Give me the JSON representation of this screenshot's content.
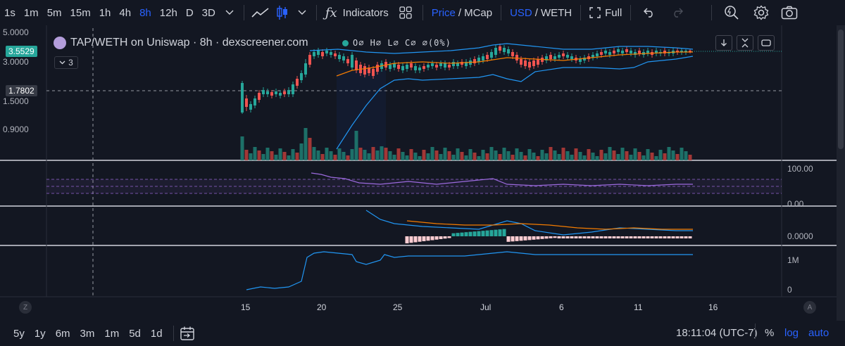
{
  "toolbar": {
    "intervals": [
      "1s",
      "1m",
      "5m",
      "15m",
      "1h",
      "4h",
      "8h",
      "12h",
      "D",
      "3D"
    ],
    "active_interval": "8h",
    "indicators_label": "Indicators",
    "price_label": "Price",
    "mcap_label": "MCap",
    "usd_label": "USD",
    "weth_label": "WETH",
    "slash": "/",
    "full_label": "Full"
  },
  "legend": {
    "title": "TAP/WETH on Uniswap · 8h · dexscreener.com",
    "ohlc": "O∅ H∅ L∅ C∅ ∅(0%)",
    "collapse_count": "3"
  },
  "price_axis": {
    "labels": [
      "5.0000",
      "3.0000",
      "1.5000",
      "0.9000"
    ],
    "current_price": "3.5529",
    "crosshair_price": "1.7802"
  },
  "rsi_axis": {
    "labels": [
      "100.00",
      "0.00"
    ]
  },
  "macd_axis": {
    "labels": [
      "0.0000"
    ]
  },
  "vol_axis": {
    "labels": [
      "1M",
      "0"
    ]
  },
  "time_axis": {
    "labels": [
      "15",
      "20",
      "25",
      "Jul",
      "6",
      "11",
      "16"
    ],
    "z_label": "Z",
    "a_label": "A"
  },
  "bottombar": {
    "ranges": [
      "5y",
      "1y",
      "6m",
      "3m",
      "1m",
      "5d",
      "1d"
    ],
    "timestamp": "18:11:04 (UTC-7)",
    "percent": "%",
    "log": "log",
    "auto": "auto"
  },
  "colors": {
    "up": "#26a69a",
    "down": "#ef5350",
    "bb": "#2196f3",
    "ma": "#f57c00",
    "rsi": "#9c6ade",
    "accent": "#2962ff"
  }
}
